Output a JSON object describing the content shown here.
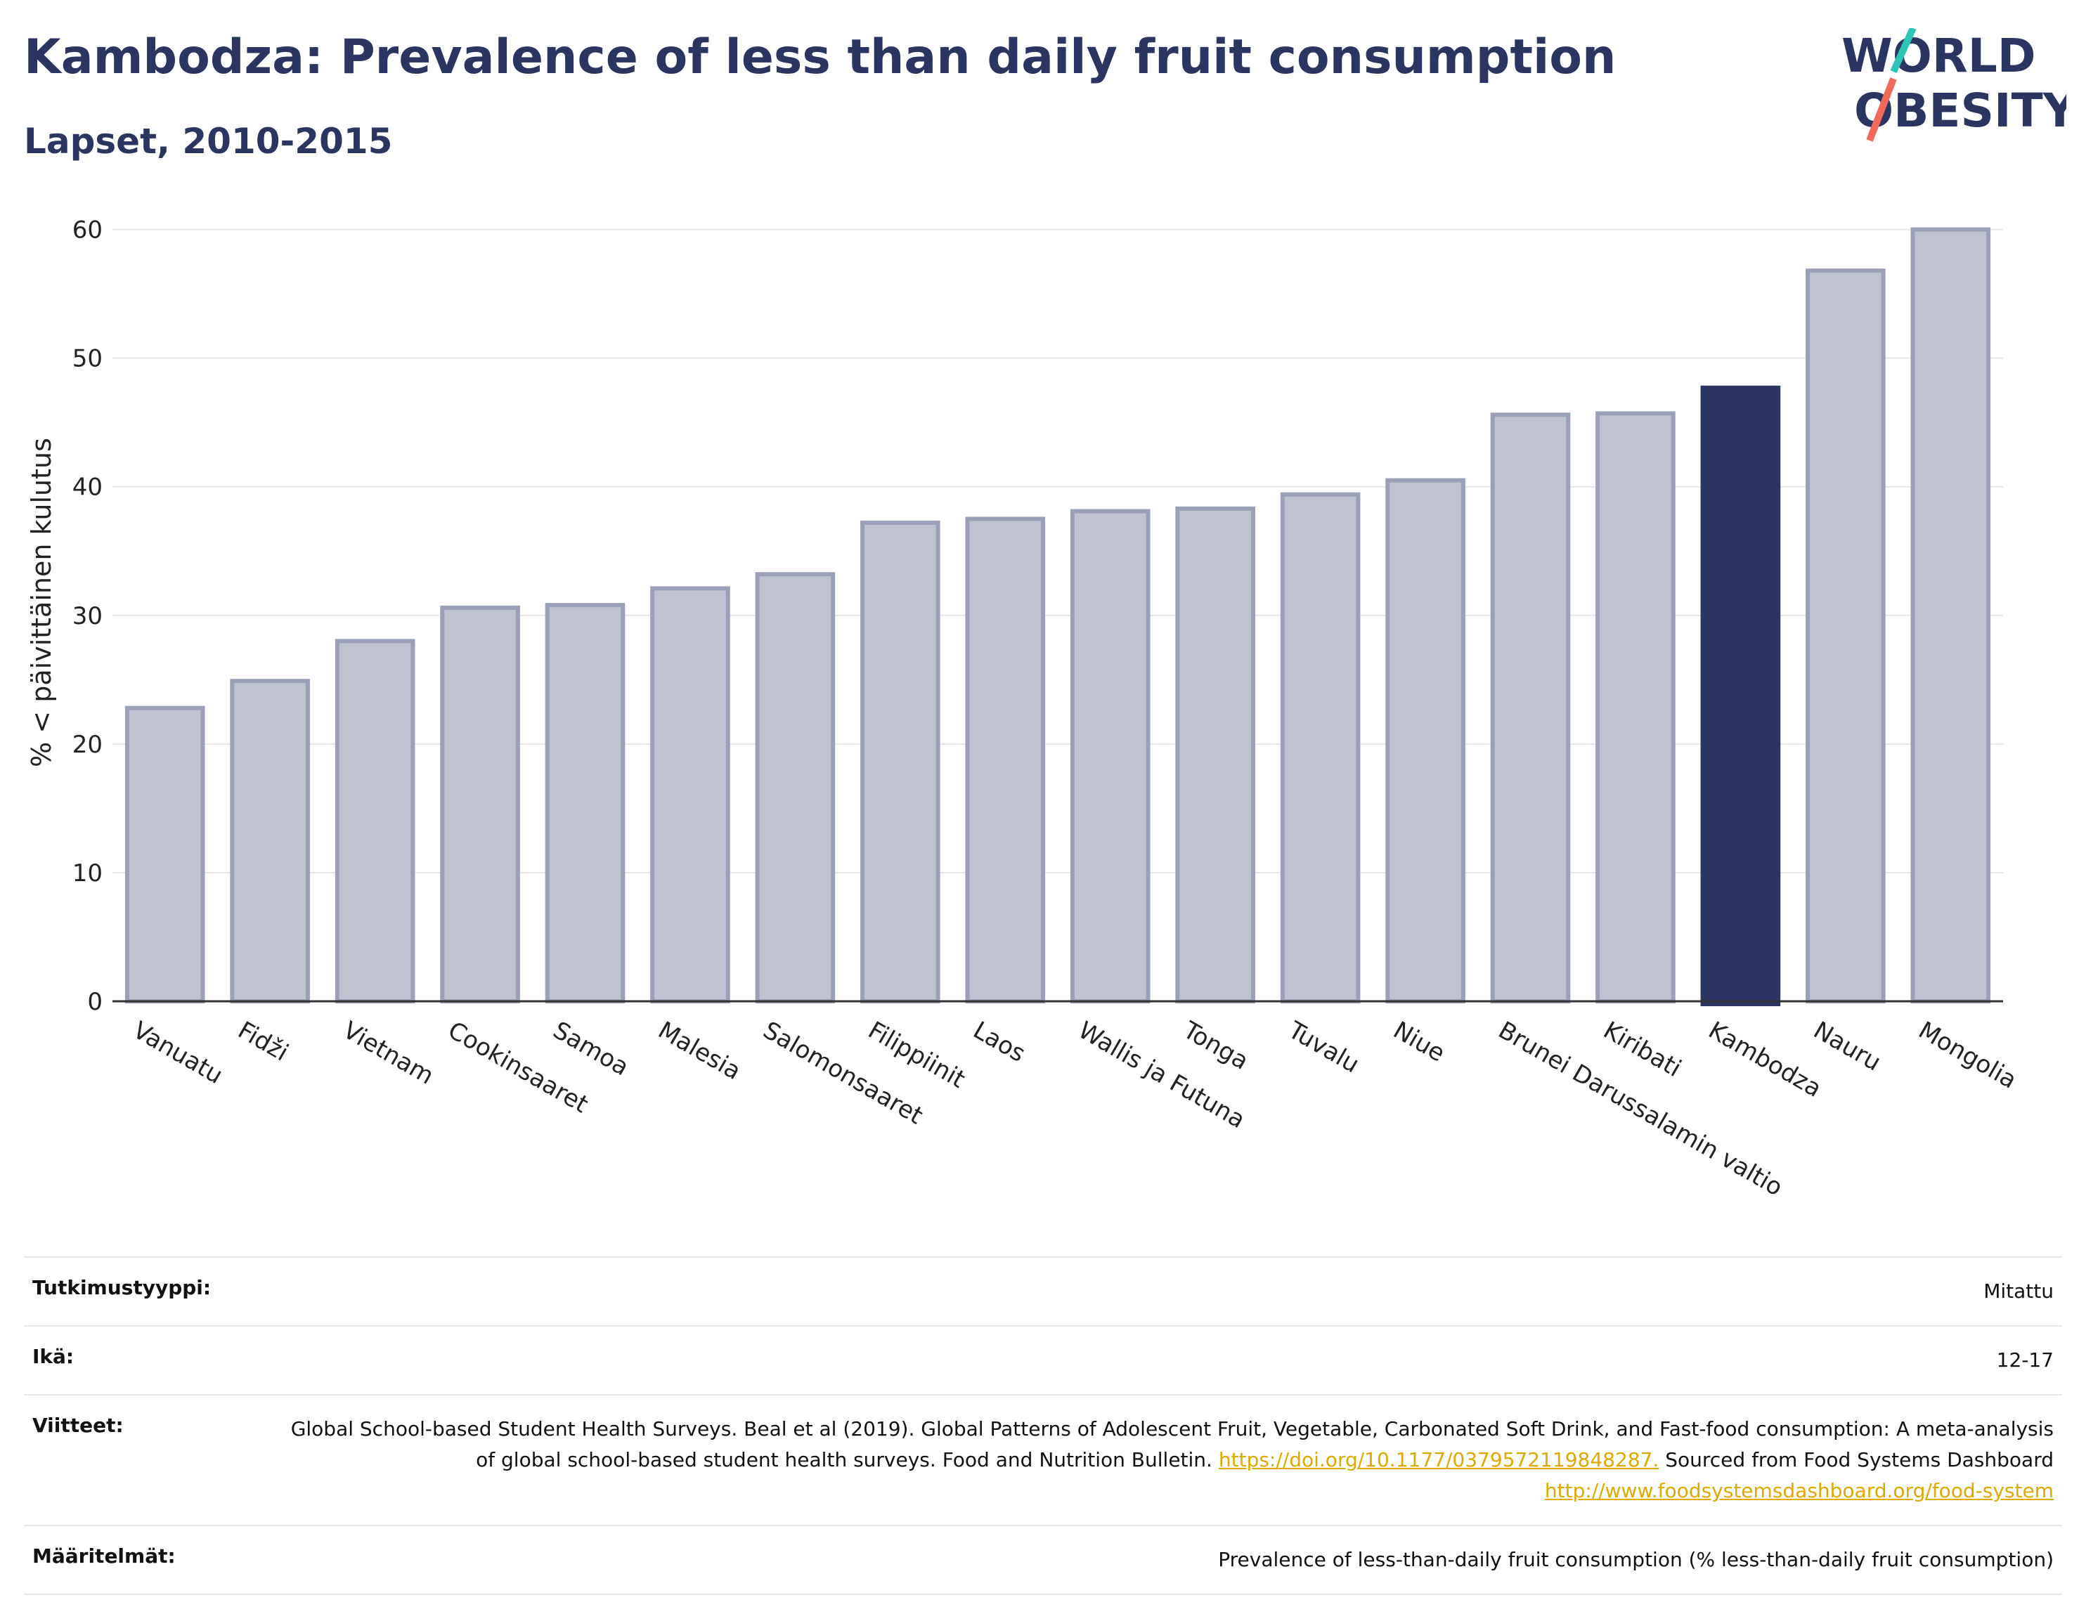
{
  "header": {
    "title": "Kambodza: Prevalence of less than daily fruit consumption",
    "subtitle": "Lapset, 2010-2015"
  },
  "logo": {
    "line1": "WORLD",
    "line2": "OBESITY",
    "slash_top_color": "#2ec4b6",
    "slash_bottom_color": "#ef6a5a"
  },
  "colors": {
    "bar": "#bfc3d1",
    "bar_stroke": "#9aa0b8",
    "highlight": "#2a3562",
    "grid": "#e6e6e6"
  },
  "chart_data": {
    "type": "bar",
    "categories": [
      "Vanuatu",
      "Fidži",
      "Vietnam",
      "Cookinsaaret",
      "Samoa",
      "Malesia",
      "Salomonsaaret",
      "Filippiinit",
      "Laos",
      "Wallis ja Futuna",
      "Tonga",
      "Tuvalu",
      "Niue",
      "Brunei Darussalamin valtio",
      "Kiribati",
      "Kambodza",
      "Nauru",
      "Mongolia"
    ],
    "values": [
      22.8,
      24.9,
      28.0,
      30.6,
      30.8,
      32.1,
      33.2,
      37.2,
      37.5,
      38.1,
      38.3,
      39.4,
      40.5,
      45.6,
      45.7,
      47.7,
      56.8,
      60.0
    ],
    "highlight": "Kambodza",
    "title": "",
    "xlabel": "",
    "ylabel": "% < päivittäinen kulutus",
    "ylim": [
      0,
      62
    ],
    "yticks": [
      0,
      10,
      20,
      30,
      40,
      50,
      60
    ],
    "grid": true,
    "legend": "none"
  },
  "meta": {
    "study_type_label": "Tutkimustyyppi:",
    "study_type_value": "Mitattu",
    "age_label": "Ikä:",
    "age_value": "12-17",
    "refs_label": "Viitteet:",
    "refs_text1": "Global School-based Student Health Surveys. Beal et al (2019). Global Patterns of Adolescent Fruit, Vegetable, Carbonated Soft Drink, and Fast-food consumption: A meta-analysis of global school-based student health surveys. Food and Nutrition Bulletin.",
    "refs_link1": "https://doi.org/10.1177/0379572119848287.",
    "refs_text2": "Sourced from Food Systems Dashboard",
    "refs_link2": "http://www.foodsystemsdashboard.org/food-system",
    "defs_label": "Määritelmät:",
    "defs_value": "Prevalence of less-than-daily fruit consumption (% less-than-daily fruit consumption)"
  }
}
